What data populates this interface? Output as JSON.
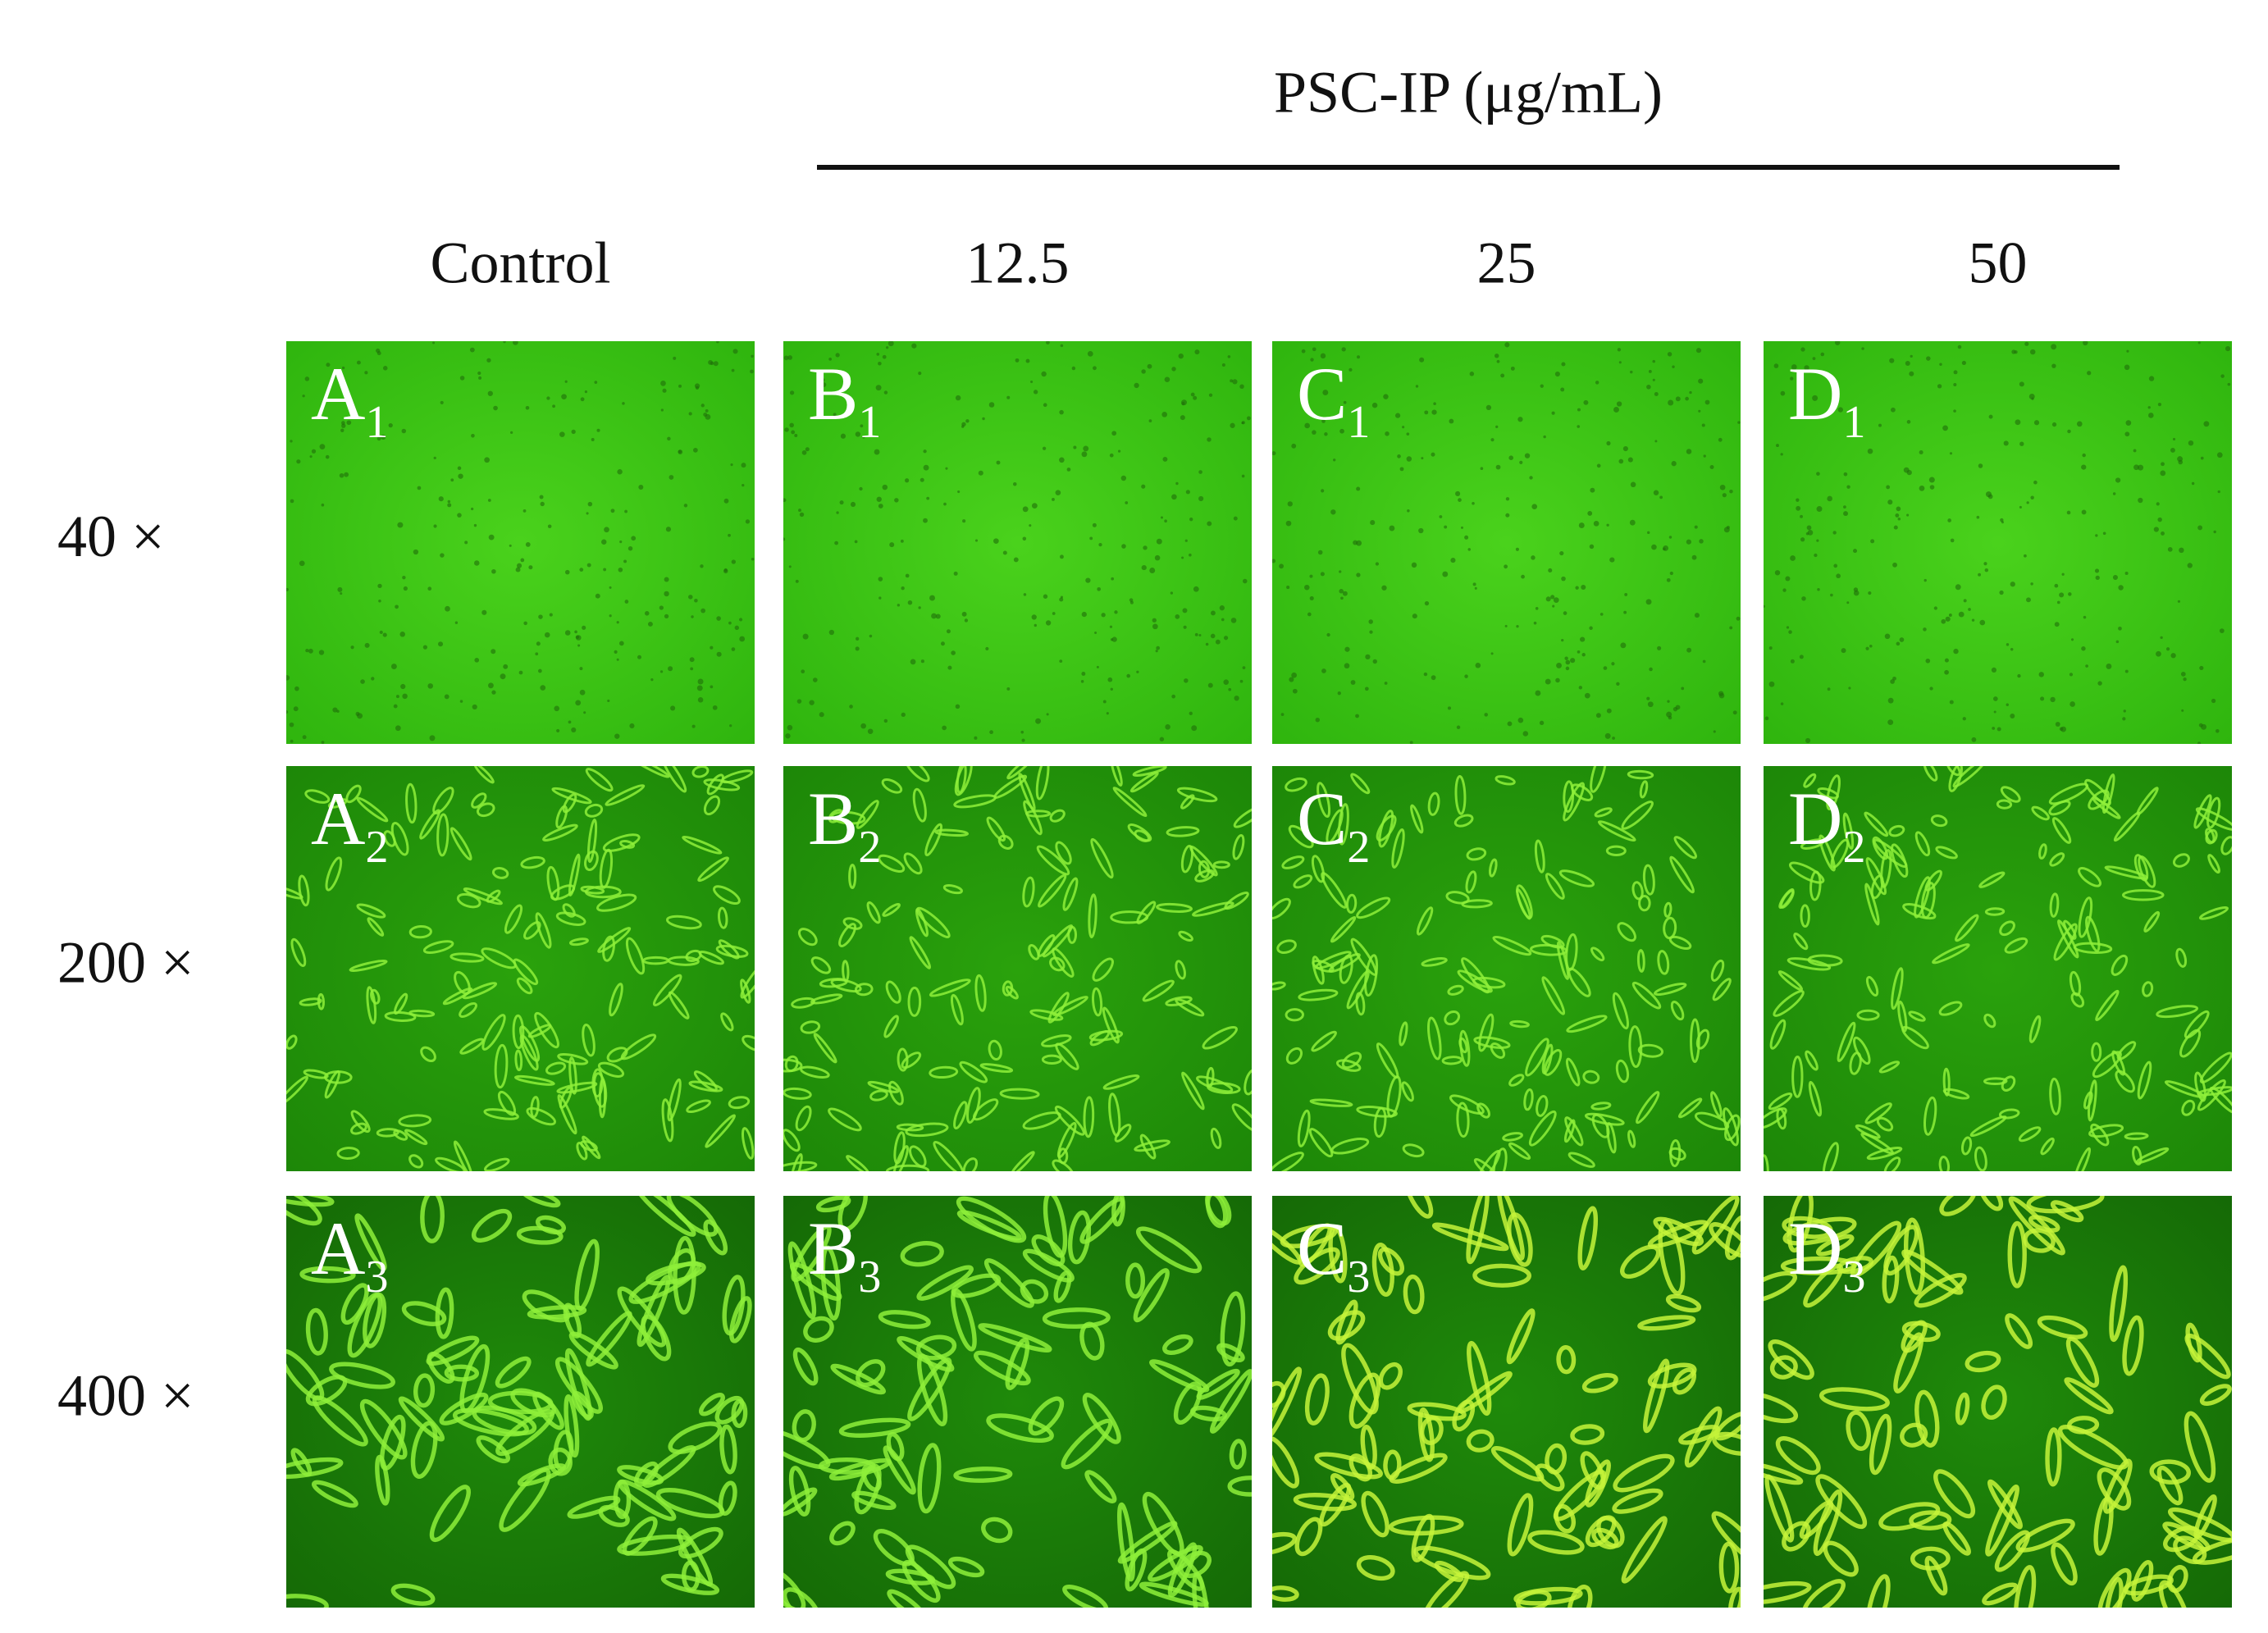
{
  "header": {
    "title": "PSC-IP  (μg/mL)"
  },
  "columns": [
    "Control",
    "12.5",
    "25",
    "50"
  ],
  "rows": [
    "40 ×",
    "200 ×",
    "400 ×"
  ],
  "panels": [
    [
      {
        "letter": "A",
        "sub": "1"
      },
      {
        "letter": "B",
        "sub": "1"
      },
      {
        "letter": "C",
        "sub": "1"
      },
      {
        "letter": "D",
        "sub": "1"
      }
    ],
    [
      {
        "letter": "A",
        "sub": "2"
      },
      {
        "letter": "B",
        "sub": "2"
      },
      {
        "letter": "C",
        "sub": "2"
      },
      {
        "letter": "D",
        "sub": "2"
      }
    ],
    [
      {
        "letter": "A",
        "sub": "3"
      },
      {
        "letter": "B",
        "sub": "3"
      },
      {
        "letter": "C",
        "sub": "3"
      },
      {
        "letter": "D",
        "sub": "3"
      }
    ]
  ]
}
